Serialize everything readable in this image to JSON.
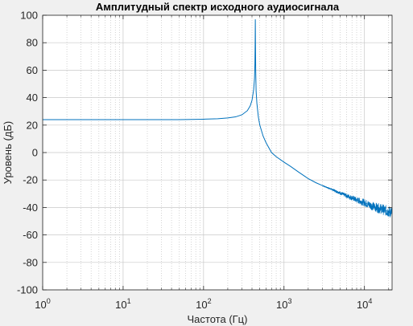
{
  "chart_data": {
    "type": "line",
    "title": "Амплитудный спектр исходного аудиосигнала",
    "xlabel": "Частота (Гц)",
    "ylabel": "Уровень (дБ)",
    "x_scale": "log",
    "xlim": [
      1,
      22050
    ],
    "ylim": [
      -100,
      100
    ],
    "grid": true,
    "minor_grid": true,
    "x_ticks": [
      1,
      10,
      100,
      1000,
      10000
    ],
    "x_tick_labels": [
      {
        "base": "10",
        "exp": "0"
      },
      {
        "base": "10",
        "exp": "1"
      },
      {
        "base": "10",
        "exp": "2"
      },
      {
        "base": "10",
        "exp": "3"
      },
      {
        "base": "10",
        "exp": "4"
      }
    ],
    "y_ticks": [
      -100,
      -80,
      -60,
      -40,
      -20,
      0,
      20,
      40,
      60,
      80,
      100
    ],
    "y_tick_labels": [
      "-100",
      "-80",
      "-60",
      "-40",
      "-20",
      "0",
      "20",
      "40",
      "60",
      "80",
      "100"
    ],
    "line_color": "#0072bd",
    "series": [
      {
        "x": [
          1,
          2,
          5,
          10,
          20,
          50,
          100,
          150,
          200,
          250,
          300,
          350,
          380,
          400,
          420,
          430,
          435,
          438,
          440,
          442,
          445,
          450,
          460,
          480,
          500,
          550,
          600,
          700,
          800,
          1000,
          1200,
          1500,
          2000,
          2500,
          3000,
          4000,
          5000,
          6000,
          7000,
          8000,
          10000,
          12000,
          14000,
          16000,
          18000,
          20000,
          22050
        ],
        "y": [
          24,
          24,
          24,
          24,
          24,
          24,
          24.3,
          24.6,
          25.2,
          26,
          27.5,
          30.5,
          34,
          38,
          46,
          54,
          65,
          80,
          97,
          80,
          60,
          45,
          36,
          26,
          20,
          12,
          7,
          0,
          -3,
          -7,
          -10,
          -14,
          -19,
          -22,
          -24,
          -27,
          -29.5,
          -31.5,
          -33,
          -34.5,
          -36.5,
          -38.5,
          -40,
          -41,
          -42,
          -43,
          -44
        ]
      }
    ]
  }
}
